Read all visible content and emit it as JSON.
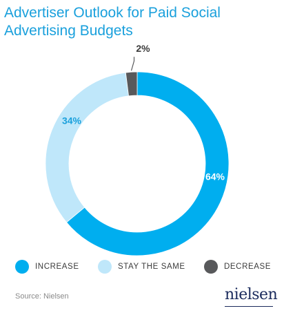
{
  "title": "Advertiser Outlook for Paid Social Advertising Budgets",
  "source": "Source: Nielsen",
  "brand": "nielsen",
  "colors": {
    "increase": "#00aeef",
    "stay": "#bfe7fa",
    "decrease": "#58595b",
    "title": "#1aa0dc"
  },
  "chart_data": {
    "type": "pie",
    "donut": true,
    "title": "Advertiser Outlook for Paid Social Advertising Budgets",
    "categories": [
      "INCREASE",
      "STAY THE SAME",
      "DECREASE"
    ],
    "values": [
      64,
      34,
      2
    ],
    "labels": [
      "64%",
      "34%",
      "2%"
    ],
    "colors": [
      "#00aeef",
      "#bfe7fa",
      "#58595b"
    ],
    "legend": "bottom"
  }
}
